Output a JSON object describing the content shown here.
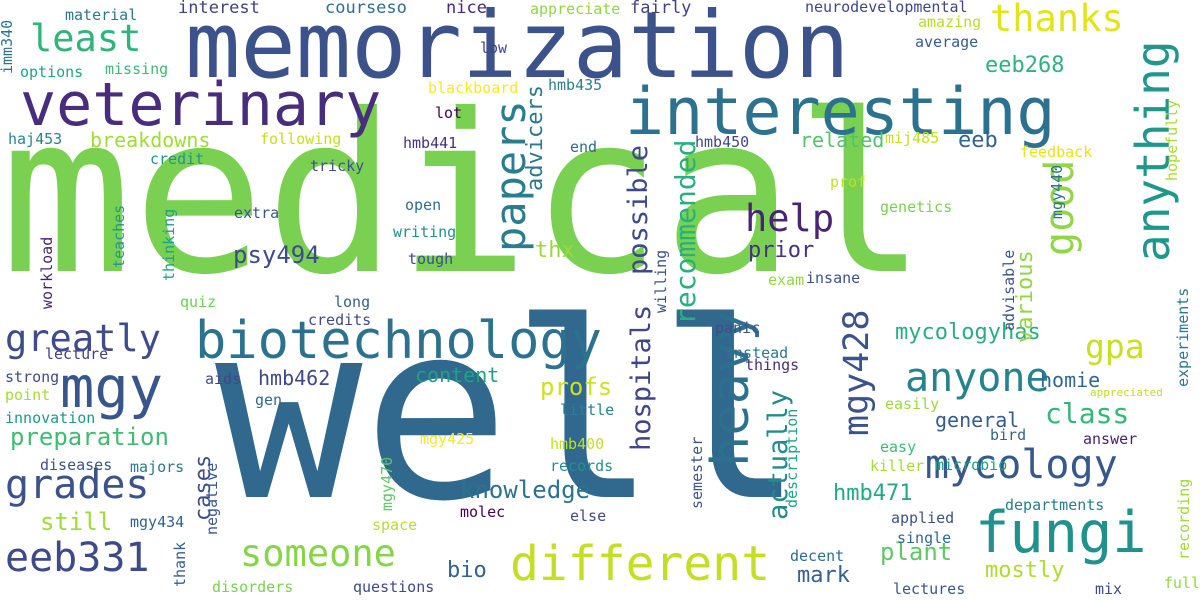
{
  "words": [
    {
      "text": "medical",
      "color": "#7ad151",
      "rotate": false
    },
    {
      "text": "well",
      "color": "#31688e",
      "rotate": false
    },
    {
      "text": "memorization",
      "color": "#3b528b",
      "rotate": false
    },
    {
      "text": "veterinary",
      "color": "#472d7b",
      "rotate": false
    },
    {
      "text": "interesting",
      "color": "#2c728e",
      "rotate": false
    },
    {
      "text": "biotechnology",
      "color": "#2c728e",
      "rotate": false
    },
    {
      "text": "different",
      "color": "#c2df23",
      "rotate": false
    },
    {
      "text": "fungi",
      "color": "#21918c",
      "rotate": false
    },
    {
      "text": "eeb331",
      "color": "#3e4989",
      "rotate": false
    },
    {
      "text": "mycology",
      "color": "#38588c",
      "rotate": false
    },
    {
      "text": "anyone",
      "color": "#25838e",
      "rotate": false
    },
    {
      "text": "grades",
      "color": "#3b528b",
      "rotate": false
    },
    {
      "text": "someone",
      "color": "#86d549",
      "rotate": false
    },
    {
      "text": "mgy",
      "color": "#39568c",
      "rotate": false
    },
    {
      "text": "help",
      "color": "#482475",
      "rotate": false
    },
    {
      "text": "thanks",
      "color": "#e2e418",
      "rotate": false
    },
    {
      "text": "least",
      "color": "#2fb47c",
      "rotate": false
    },
    {
      "text": "greatly",
      "color": "#3e4c8a",
      "rotate": false
    },
    {
      "text": "knowledge",
      "color": "#2c728e",
      "rotate": false
    },
    {
      "text": "preparation",
      "color": "#3fbc73",
      "rotate": false
    },
    {
      "text": "class",
      "color": "#35b779",
      "rotate": false
    },
    {
      "text": "mycologyhas",
      "color": "#29af7f",
      "rotate": false
    },
    {
      "text": "eeb268",
      "color": "#2db27d",
      "rotate": false
    },
    {
      "text": "psy494",
      "color": "#3e4a89",
      "rotate": false
    },
    {
      "text": "hmb462",
      "color": "#3f4788",
      "rotate": false
    },
    {
      "text": "hmb471",
      "color": "#23a983",
      "rotate": false
    },
    {
      "text": "plant",
      "color": "#5ec962",
      "rotate": false
    },
    {
      "text": "mark",
      "color": "#34618d",
      "rotate": false
    },
    {
      "text": "mostly",
      "color": "#addc30",
      "rotate": false
    },
    {
      "text": "prior",
      "color": "#46327e",
      "rotate": false
    },
    {
      "text": "bio",
      "color": "#33638d",
      "rotate": false
    },
    {
      "text": "homie",
      "color": "#31688e",
      "rotate": false
    },
    {
      "text": "general",
      "color": "#365c8d",
      "rotate": false
    },
    {
      "text": "gpa",
      "color": "#c8e020",
      "rotate": false
    },
    {
      "text": "breakdowns",
      "color": "#a2da37",
      "rotate": false
    },
    {
      "text": "related",
      "color": "#50c46a",
      "rotate": false
    },
    {
      "text": "content",
      "color": "#1fa187",
      "rotate": false
    },
    {
      "text": "profs",
      "color": "#cde11d",
      "rotate": false
    },
    {
      "text": "thx",
      "color": "#9bd93c",
      "rotate": false
    },
    {
      "text": "eeb",
      "color": "#33638d",
      "rotate": false
    },
    {
      "text": "still",
      "color": "#9fda3a",
      "rotate": false
    },
    {
      "text": "heavy",
      "color": "#2d708e",
      "rotate": true
    },
    {
      "text": "anything",
      "color": "#1f988b",
      "rotate": true
    },
    {
      "text": "papers",
      "color": "#287d8e",
      "rotate": true
    },
    {
      "text": "good",
      "color": "#90d743",
      "rotate": true
    },
    {
      "text": "mgy428",
      "color": "#3b528b",
      "rotate": true
    },
    {
      "text": "recommended",
      "color": "#29af7f",
      "rotate": true
    },
    {
      "text": "possible",
      "color": "#3e4989",
      "rotate": true
    },
    {
      "text": "hospitals",
      "color": "#414487",
      "rotate": true
    },
    {
      "text": "actually",
      "color": "#238a8d",
      "rotate": true
    },
    {
      "text": "advicers",
      "color": "#2a788e",
      "rotate": true
    },
    {
      "text": "cases",
      "color": "#3e4c8a",
      "rotate": true
    },
    {
      "text": "various",
      "color": "#90d743",
      "rotate": true
    },
    {
      "text": "interest",
      "color": "#433e85",
      "rotate": false
    },
    {
      "text": "courseso",
      "color": "#2e6e8e",
      "rotate": false
    },
    {
      "text": "nice",
      "color": "#482878",
      "rotate": false
    },
    {
      "text": "appreciate",
      "color": "#90d743",
      "rotate": false
    },
    {
      "text": "fairly",
      "color": "#424086",
      "rotate": false
    },
    {
      "text": "material",
      "color": "#2a788e",
      "rotate": false
    },
    {
      "text": "neurodevelopmental",
      "color": "#3f4788",
      "rotate": false
    },
    {
      "text": "amazing",
      "color": "#b5de2b",
      "rotate": false
    },
    {
      "text": "average",
      "color": "#365c8d",
      "rotate": false
    },
    {
      "text": "missing",
      "color": "#3aba76",
      "rotate": false
    },
    {
      "text": "options",
      "color": "#20a486",
      "rotate": false
    },
    {
      "text": "low",
      "color": "#404688",
      "rotate": false
    },
    {
      "text": "blackboard",
      "color": "#fde725",
      "rotate": false
    },
    {
      "text": "hmb435",
      "color": "#27808e",
      "rotate": false
    },
    {
      "text": "lot",
      "color": "#440154",
      "rotate": false
    },
    {
      "text": "hmb441",
      "color": "#46327e",
      "rotate": false
    },
    {
      "text": "hmb450",
      "color": "#3e4989",
      "rotate": false
    },
    {
      "text": "mij485",
      "color": "#c8e020",
      "rotate": false
    },
    {
      "text": "haj453",
      "color": "#25848e",
      "rotate": false
    },
    {
      "text": "following",
      "color": "#c0df25",
      "rotate": false
    },
    {
      "text": "credit",
      "color": "#1f968b",
      "rotate": false
    },
    {
      "text": "tricky",
      "color": "#3b528b",
      "rotate": false
    },
    {
      "text": "end",
      "color": "#31688e",
      "rotate": false
    },
    {
      "text": "feedback",
      "color": "#e7e419",
      "rotate": false
    },
    {
      "text": "prof",
      "color": "#c2df23",
      "rotate": false
    },
    {
      "text": "extra",
      "color": "#38588c",
      "rotate": false
    },
    {
      "text": "open",
      "color": "#2e6e8e",
      "rotate": false
    },
    {
      "text": "genetics",
      "color": "#7ad151",
      "rotate": false
    },
    {
      "text": "writing",
      "color": "#21918c",
      "rotate": false
    },
    {
      "text": "tough",
      "color": "#3d4d8a",
      "rotate": false
    },
    {
      "text": "exam",
      "color": "#90d743",
      "rotate": false
    },
    {
      "text": "insane",
      "color": "#3b528b",
      "rotate": false
    },
    {
      "text": "quiz",
      "color": "#6ece58",
      "rotate": false
    },
    {
      "text": "long",
      "color": "#34618d",
      "rotate": false
    },
    {
      "text": "credits",
      "color": "#3e4989",
      "rotate": false
    },
    {
      "text": "lecture",
      "color": "#433e85",
      "rotate": false
    },
    {
      "text": "panic",
      "color": "#3d4e8a",
      "rotate": false
    },
    {
      "text": "instead",
      "color": "#2a788e",
      "rotate": false
    },
    {
      "text": "things",
      "color": "#472d7b",
      "rotate": false
    },
    {
      "text": "aids",
      "color": "#3f4788",
      "rotate": false
    },
    {
      "text": "strong",
      "color": "#3e4a89",
      "rotate": false
    },
    {
      "text": "point",
      "color": "#a5db36",
      "rotate": false
    },
    {
      "text": "gen",
      "color": "#31688e",
      "rotate": false
    },
    {
      "text": "innovation",
      "color": "#1f988b",
      "rotate": false
    },
    {
      "text": "little",
      "color": "#26828e",
      "rotate": false
    },
    {
      "text": "easily",
      "color": "#9bd93c",
      "rotate": false
    },
    {
      "text": "appreciated",
      "color": "#bddf26",
      "rotate": false
    },
    {
      "text": "bird",
      "color": "#32658e",
      "rotate": false
    },
    {
      "text": "easy",
      "color": "#3dbc74",
      "rotate": false
    },
    {
      "text": "microbio",
      "color": "#1e9b8a",
      "rotate": false
    },
    {
      "text": "killer",
      "color": "#a5db36",
      "rotate": false
    },
    {
      "text": "answer",
      "color": "#481f70",
      "rotate": false
    },
    {
      "text": "mgy425",
      "color": "#fde725",
      "rotate": false
    },
    {
      "text": "hmb400",
      "color": "#c0df25",
      "rotate": false
    },
    {
      "text": "records",
      "color": "#21918c",
      "rotate": false
    },
    {
      "text": "diseases",
      "color": "#3b528b",
      "rotate": false
    },
    {
      "text": "majors",
      "color": "#2a788e",
      "rotate": false
    },
    {
      "text": "mgy434",
      "color": "#33638d",
      "rotate": false
    },
    {
      "text": "molec",
      "color": "#440154",
      "rotate": false
    },
    {
      "text": "else",
      "color": "#3e4989",
      "rotate": false
    },
    {
      "text": "departments",
      "color": "#287d8e",
      "rotate": false
    },
    {
      "text": "applied",
      "color": "#3b528b",
      "rotate": false
    },
    {
      "text": "space",
      "color": "#b5de2b",
      "rotate": false
    },
    {
      "text": "single",
      "color": "#30698e",
      "rotate": false
    },
    {
      "text": "decent",
      "color": "#2e6e8e",
      "rotate": false
    },
    {
      "text": "questions",
      "color": "#3e4989",
      "rotate": false
    },
    {
      "text": "disorders",
      "color": "#7ad151",
      "rotate": false
    },
    {
      "text": "lectures",
      "color": "#39568c",
      "rotate": false
    },
    {
      "text": "mix",
      "color": "#3e4989",
      "rotate": false
    },
    {
      "text": "full",
      "color": "#90d743",
      "rotate": false
    },
    {
      "text": "imm340",
      "color": "#2c728e",
      "rotate": true
    },
    {
      "text": "hopefully",
      "color": "#a8db34",
      "rotate": true
    },
    {
      "text": "mgy440",
      "color": "#2c728e",
      "rotate": true
    },
    {
      "text": "teaches",
      "color": "#1f988b",
      "rotate": true
    },
    {
      "text": "workload",
      "color": "#481f70",
      "rotate": true
    },
    {
      "text": "thinking",
      "color": "#1fa187",
      "rotate": true
    },
    {
      "text": "willing",
      "color": "#3b528b",
      "rotate": true
    },
    {
      "text": "advisable",
      "color": "#3b528b",
      "rotate": true
    },
    {
      "text": "experiments",
      "color": "#2a788e",
      "rotate": true
    },
    {
      "text": "negative",
      "color": "#38588c",
      "rotate": true
    },
    {
      "text": "semester",
      "color": "#3b528b",
      "rotate": true
    },
    {
      "text": "description",
      "color": "#20a486",
      "rotate": true
    },
    {
      "text": "mgy470",
      "color": "#5ec962",
      "rotate": true
    },
    {
      "text": "thank",
      "color": "#34618d",
      "rotate": true
    },
    {
      "text": "recording",
      "color": "#a2da37",
      "rotate": true
    }
  ]
}
